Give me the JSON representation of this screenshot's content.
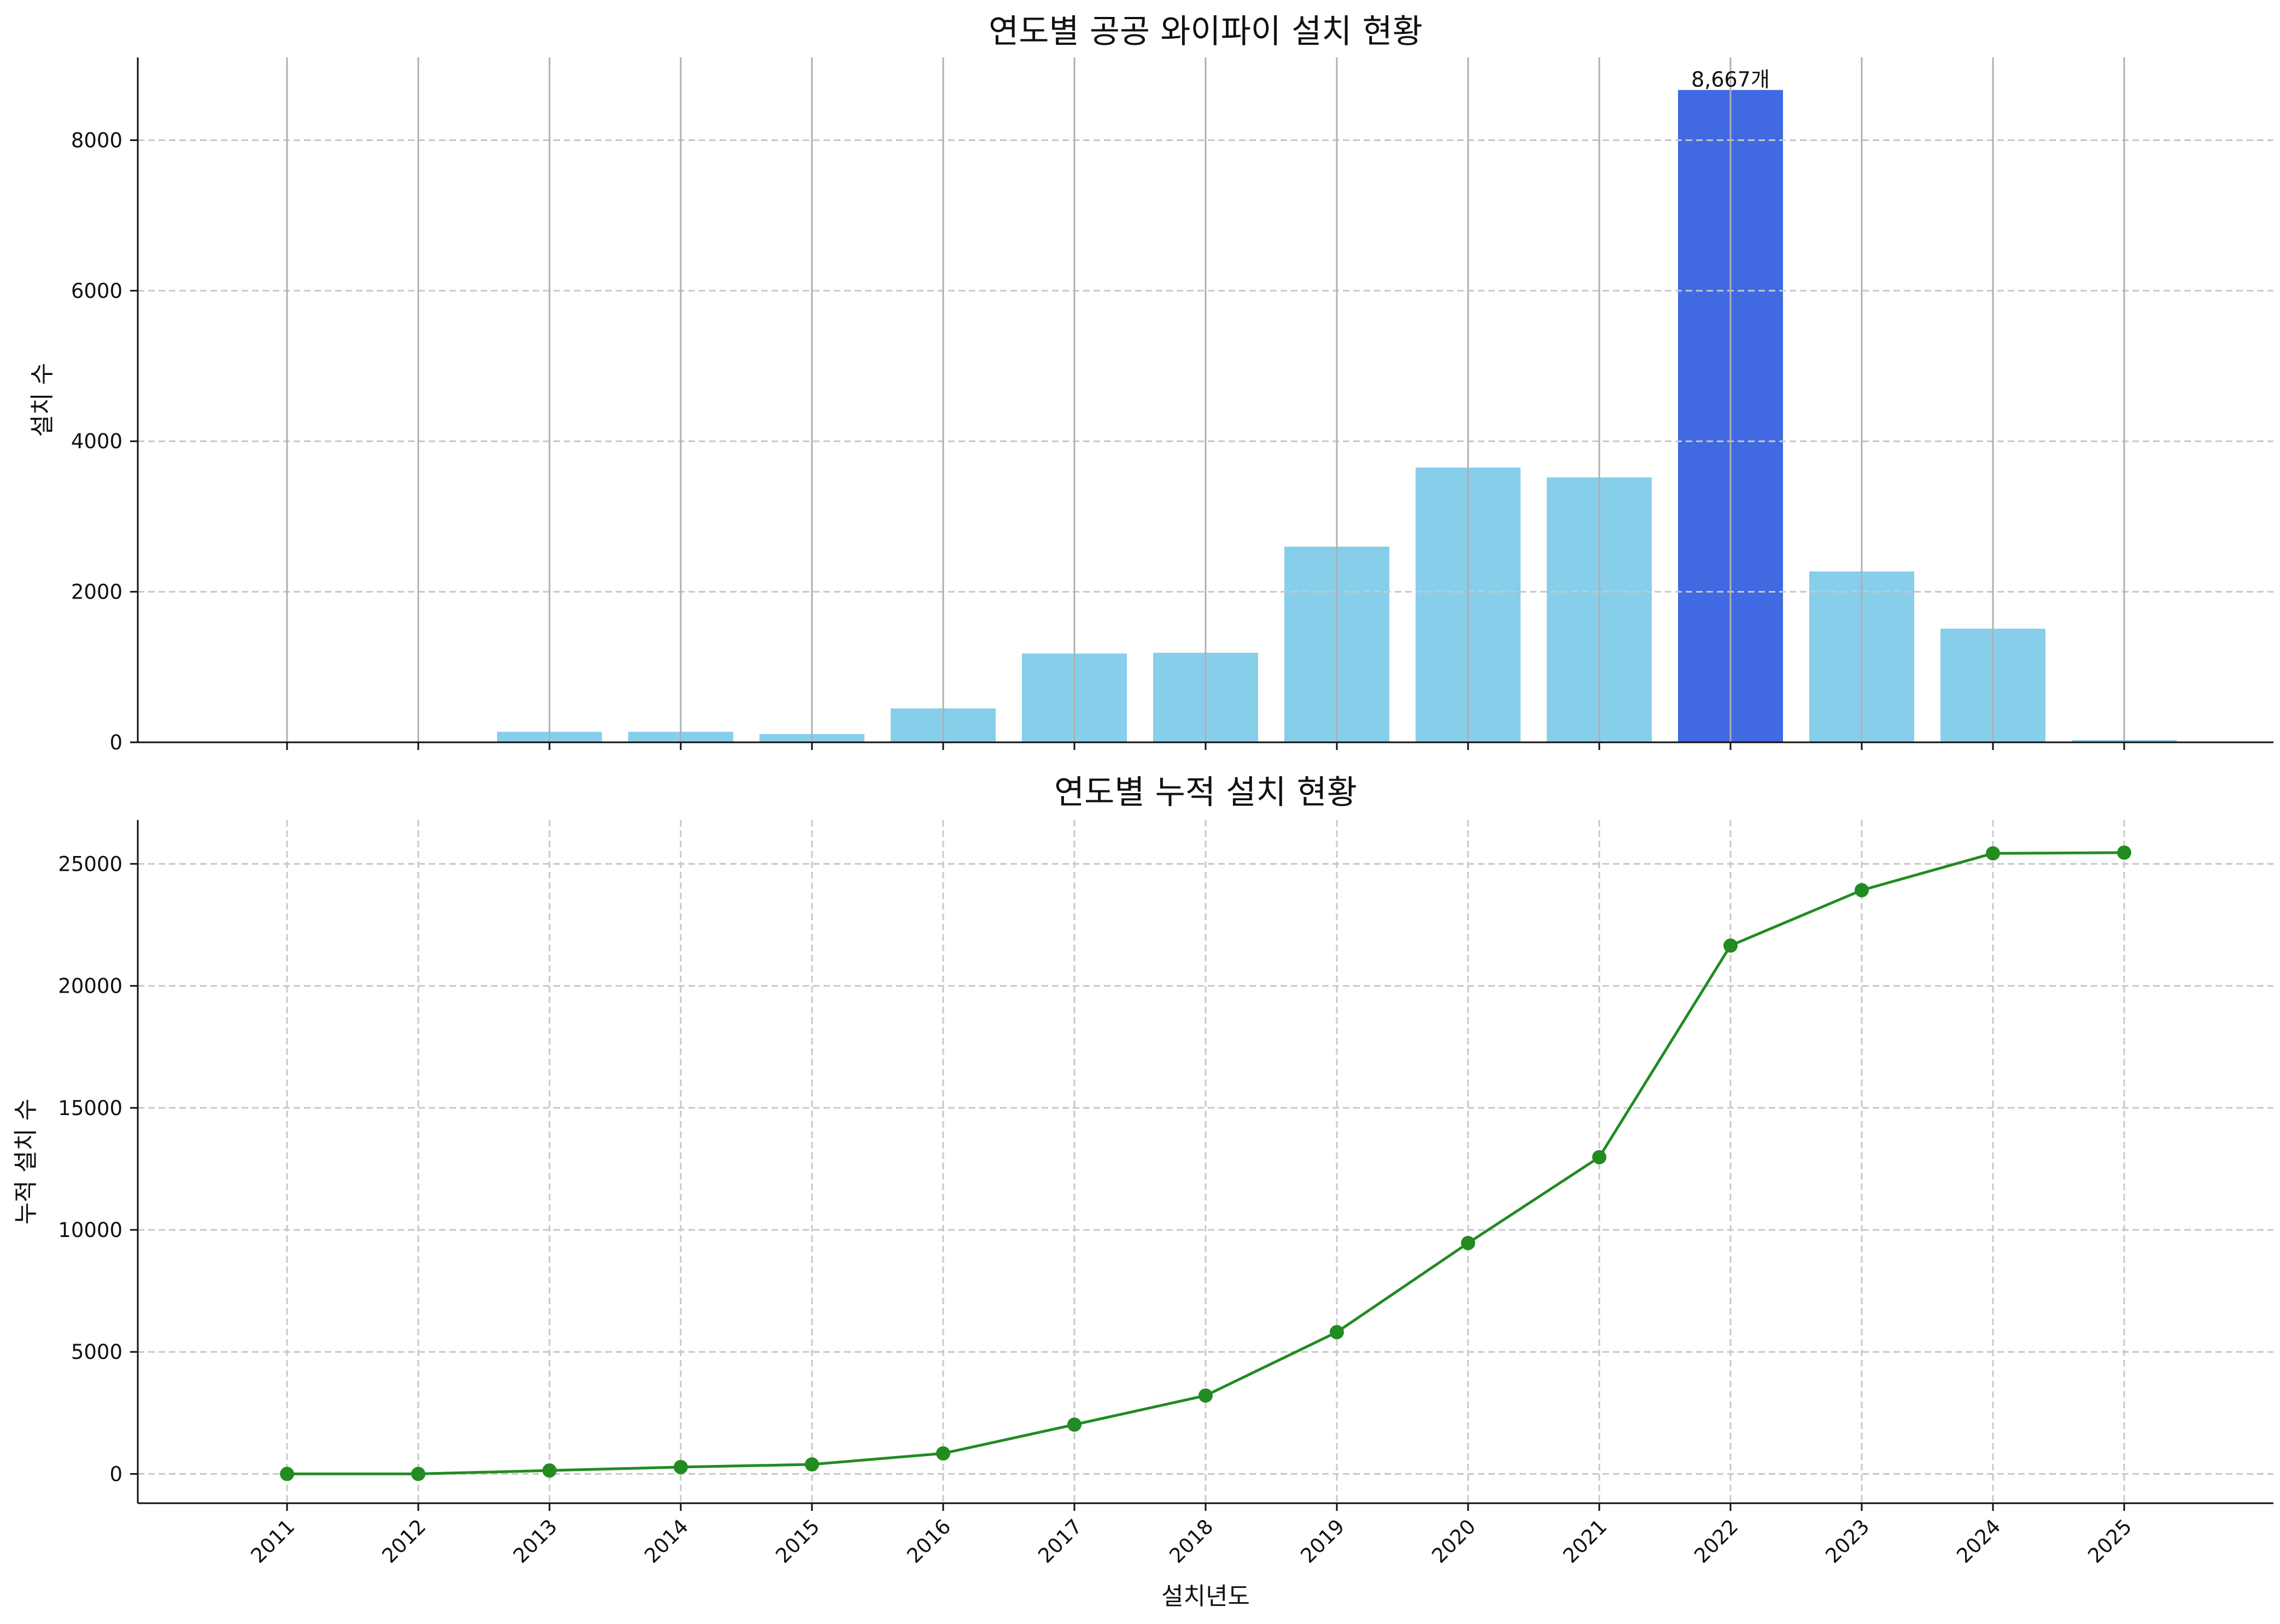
{
  "chart_data": [
    {
      "type": "bar",
      "title": "연도별 공공 와이파이 설치 현황",
      "xlabel": "",
      "ylabel": "설치 수",
      "categories": [
        "2011",
        "2012",
        "2013",
        "2014",
        "2015",
        "2016",
        "2017",
        "2018",
        "2019",
        "2020",
        "2021",
        "2022",
        "2023",
        "2024",
        "2025"
      ],
      "values": [
        0,
        0,
        140,
        140,
        110,
        450,
        1180,
        1190,
        2600,
        3650,
        3520,
        8667,
        2270,
        1510,
        30
      ],
      "ylim": [
        0,
        9100
      ],
      "yticks": [
        "0",
        "2000",
        "4000",
        "6000",
        "8000"
      ],
      "highlight_index": 11,
      "annotations": [
        {
          "category": "2022",
          "text": "8,667개"
        }
      ],
      "colors": {
        "bar": "#87ceeb",
        "highlight": "#4169e1"
      },
      "grid": "y dashed, x solid"
    },
    {
      "type": "line",
      "title": "연도별 누적 설치 현황",
      "xlabel": "설치년도",
      "ylabel": "누적 설치 수",
      "x": [
        "2011",
        "2012",
        "2013",
        "2014",
        "2015",
        "2016",
        "2017",
        "2018",
        "2019",
        "2020",
        "2021",
        "2022",
        "2023",
        "2024",
        "2025"
      ],
      "values": [
        0,
        0,
        140,
        280,
        390,
        840,
        2020,
        3210,
        5810,
        9460,
        12980,
        21650,
        23920,
        25430,
        25460
      ],
      "ylim": [
        -1200,
        26800
      ],
      "yticks": [
        "0",
        "5000",
        "10000",
        "15000",
        "20000",
        "25000"
      ],
      "colors": {
        "line": "#228b22",
        "marker": "#228b22"
      },
      "marker": "circle",
      "grid": "dashed"
    }
  ]
}
